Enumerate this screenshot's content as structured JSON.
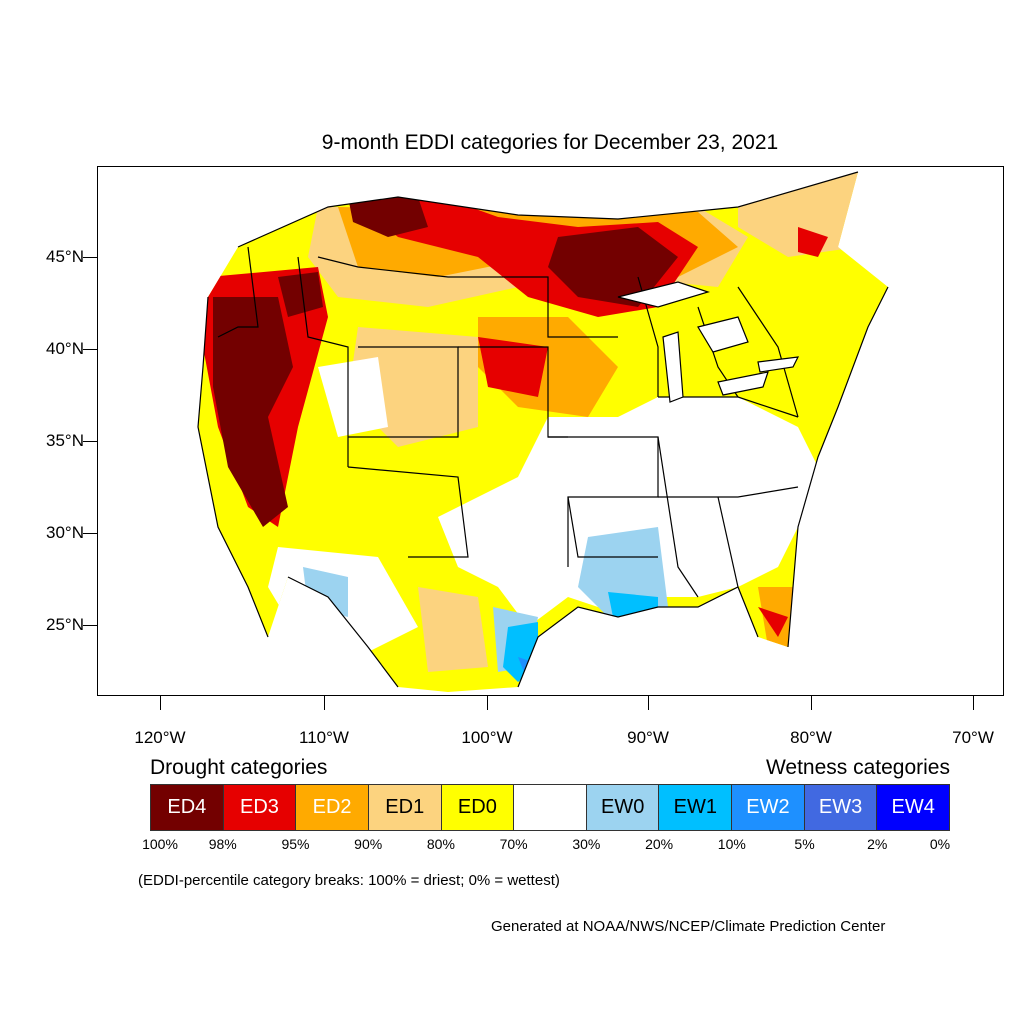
{
  "title": "9-month EDDI categories for December 23, 2021",
  "latitude_labels": [
    "45°N",
    "40°N",
    "35°N",
    "30°N",
    "25°N"
  ],
  "longitude_labels": [
    "120°W",
    "110°W",
    "100°W",
    "90°W",
    "80°W",
    "70°W"
  ],
  "legend": {
    "drought_heading": "Drought categories",
    "wetness_heading": "Wetness categories",
    "categories": [
      {
        "label": "ED4",
        "color": "#730000",
        "text_color": "#ffffff"
      },
      {
        "label": "ED3",
        "color": "#e60000",
        "text_color": "#ffffff"
      },
      {
        "label": "ED2",
        "color": "#ffaa00",
        "text_color": "#ffffff"
      },
      {
        "label": "ED1",
        "color": "#fcd37f",
        "text_color": "#000000"
      },
      {
        "label": "ED0",
        "color": "#ffff00",
        "text_color": "#000000"
      },
      {
        "label": "",
        "color": "#ffffff",
        "text_color": "#000000"
      },
      {
        "label": "EW0",
        "color": "#9cd3f0",
        "text_color": "#000000"
      },
      {
        "label": "EW1",
        "color": "#00bfff",
        "text_color": "#000000"
      },
      {
        "label": "EW2",
        "color": "#1e90ff",
        "text_color": "#ffffff"
      },
      {
        "label": "EW3",
        "color": "#4169e1",
        "text_color": "#ffffff"
      },
      {
        "label": "EW4",
        "color": "#0000ff",
        "text_color": "#ffffff"
      }
    ],
    "percent_breaks": [
      "100%",
      "98%",
      "95%",
      "90%",
      "80%",
      "70%",
      "30%",
      "20%",
      "10%",
      "5%",
      "2%",
      "0%"
    ]
  },
  "note": "(EDDI-percentile category breaks: 100% = driest; 0% = wettest)",
  "credit": "Generated at NOAA/NWS/NCEP/Climate Prediction Center"
}
